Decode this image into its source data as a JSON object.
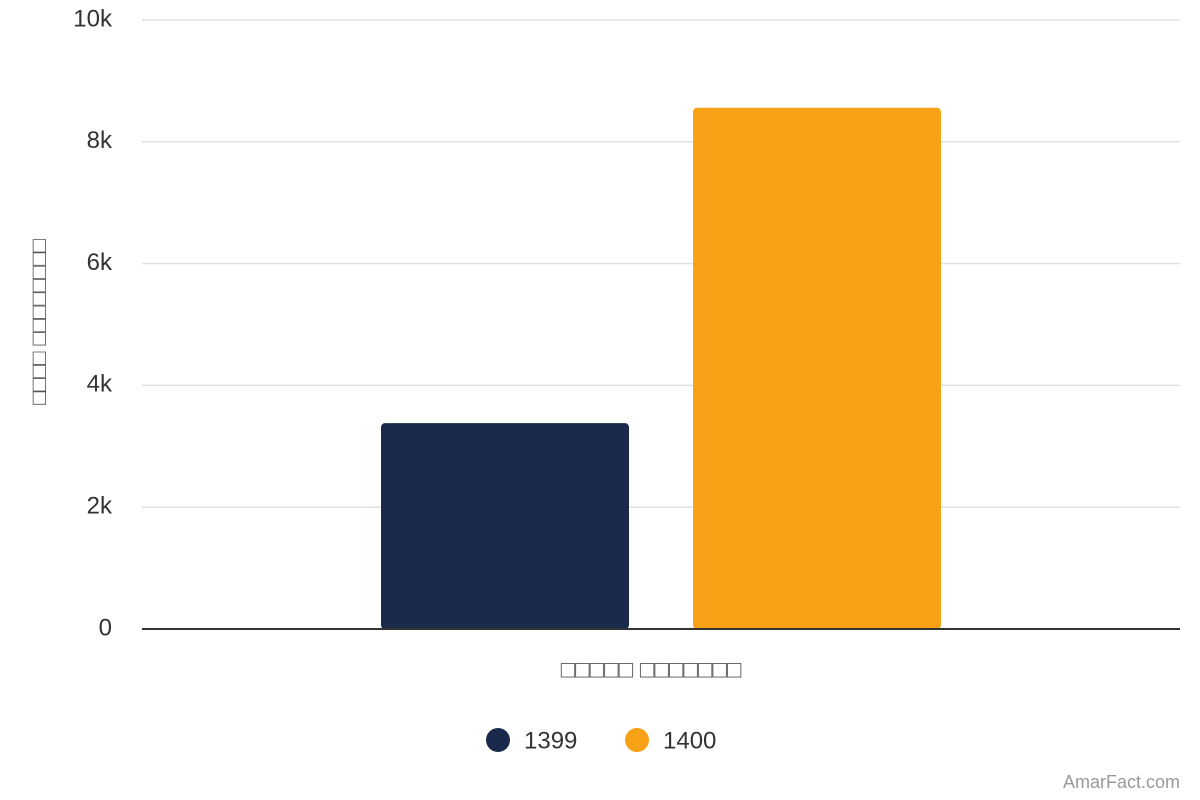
{
  "chart_data": {
    "type": "bar",
    "categories": [
      "□□□□□ □□□□□□□"
    ],
    "x_label": "□□□□□ □□□□□□□",
    "y_label": "□□□□ □□□□□□□□",
    "series": [
      {
        "name": "1399",
        "color": "#1b2a4c",
        "values": [
          3380
        ]
      },
      {
        "name": "1400",
        "color": "#f9a217",
        "values": [
          8560
        ]
      }
    ],
    "ylim": [
      0,
      10000
    ],
    "yticks": [
      0,
      {
        "value": 2000,
        "label": "2k"
      },
      {
        "value": 4000,
        "label": "4k"
      },
      {
        "value": 6000,
        "label": "6k"
      },
      {
        "value": 8000,
        "label": "8k"
      },
      {
        "value": 10000,
        "label": "10k"
      }
    ],
    "grid": true,
    "legend": "bottom",
    "watermark": "AmarFact.com"
  }
}
